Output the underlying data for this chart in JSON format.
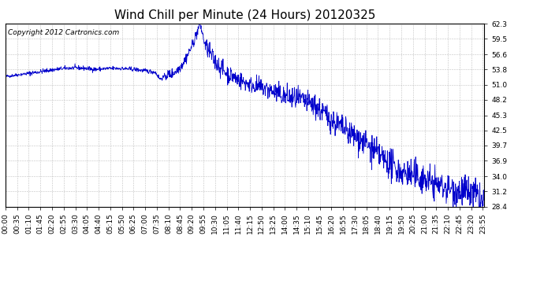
{
  "title": "Wind Chill per Minute (24 Hours) 20120325",
  "copyright_text": "Copyright 2012 Cartronics.com",
  "line_color": "#0000cc",
  "background_color": "#ffffff",
  "plot_background": "#ffffff",
  "grid_color": "#bbbbbb",
  "ylim": [
    28.4,
    62.3
  ],
  "yticks": [
    28.4,
    31.2,
    34.0,
    36.9,
    39.7,
    42.5,
    45.3,
    48.2,
    51.0,
    53.8,
    56.6,
    59.5,
    62.3
  ],
  "title_fontsize": 11,
  "copyright_fontsize": 6.5,
  "tick_label_fontsize": 6.5,
  "xtick_interval": 35
}
